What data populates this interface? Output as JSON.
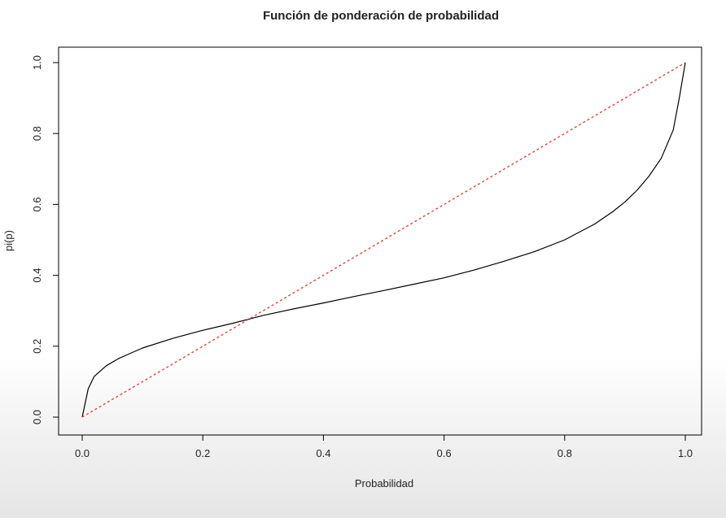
{
  "chart_data": {
    "type": "line",
    "title": "Función de ponderación de probabilidad",
    "xlabel": "Probabilidad",
    "ylabel": "pi(p)",
    "xlim": [
      0,
      1
    ],
    "ylim": [
      0,
      1
    ],
    "x_ticks": [
      "0.0",
      "0.2",
      "0.4",
      "0.6",
      "0.8",
      "1.0"
    ],
    "y_ticks": [
      "0.0",
      "0.2",
      "0.4",
      "0.6",
      "0.8",
      "1.0"
    ],
    "grid": false,
    "legend": "none",
    "series": [
      {
        "style": "solid",
        "color": "#000000",
        "x": [
          0,
          0.01,
          0.02,
          0.04,
          0.06,
          0.08,
          0.1,
          0.15,
          0.2,
          0.25,
          0.28,
          0.3,
          0.35,
          0.4,
          0.45,
          0.5,
          0.55,
          0.6,
          0.65,
          0.7,
          0.75,
          0.8,
          0.85,
          0.88,
          0.9,
          0.92,
          0.94,
          0.96,
          0.98,
          0.99,
          1.0
        ],
        "y": [
          0.0,
          0.08,
          0.115,
          0.145,
          0.165,
          0.18,
          0.195,
          0.222,
          0.245,
          0.265,
          0.278,
          0.287,
          0.305,
          0.322,
          0.34,
          0.357,
          0.375,
          0.393,
          0.415,
          0.44,
          0.467,
          0.5,
          0.545,
          0.58,
          0.607,
          0.64,
          0.68,
          0.73,
          0.81,
          0.9,
          1.0
        ]
      },
      {
        "style": "dotted",
        "color": "#e8413c",
        "x": [
          0,
          1
        ],
        "y": [
          0,
          1
        ]
      }
    ]
  }
}
